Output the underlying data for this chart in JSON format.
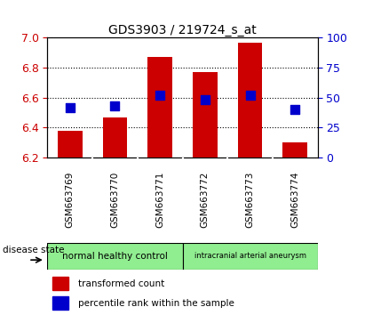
{
  "title": "GDS3903 / 219724_s_at",
  "samples": [
    "GSM663769",
    "GSM663770",
    "GSM663771",
    "GSM663772",
    "GSM663773",
    "GSM663774"
  ],
  "transformed_count": [
    6.38,
    6.47,
    6.87,
    6.77,
    6.97,
    6.3
  ],
  "transformed_count_base": 6.2,
  "percentile_rank": [
    42,
    43,
    52,
    48,
    52,
    40
  ],
  "ylim_left": [
    6.2,
    7.0
  ],
  "ylim_right": [
    0,
    100
  ],
  "yticks_left": [
    6.2,
    6.4,
    6.6,
    6.8,
    7.0
  ],
  "yticks_right": [
    0,
    25,
    50,
    75,
    100
  ],
  "group_labels": [
    "normal healthy control",
    "intracranial arterial aneurysm"
  ],
  "group_sizes": [
    3,
    3
  ],
  "group_color": "#90EE90",
  "group_boundary": 3,
  "bar_color": "#CC0000",
  "dot_color": "#0000CC",
  "bar_width": 0.55,
  "dot_size": 55,
  "grid_color": "black",
  "disease_state_label": "disease state",
  "legend_bar_label": "transformed count",
  "legend_dot_label": "percentile rank within the sample",
  "tick_color_left": "#CC0000",
  "tick_color_right": "#0000CC",
  "sample_box_color": "#C8C8C8",
  "sample_box_edge": "#888888"
}
